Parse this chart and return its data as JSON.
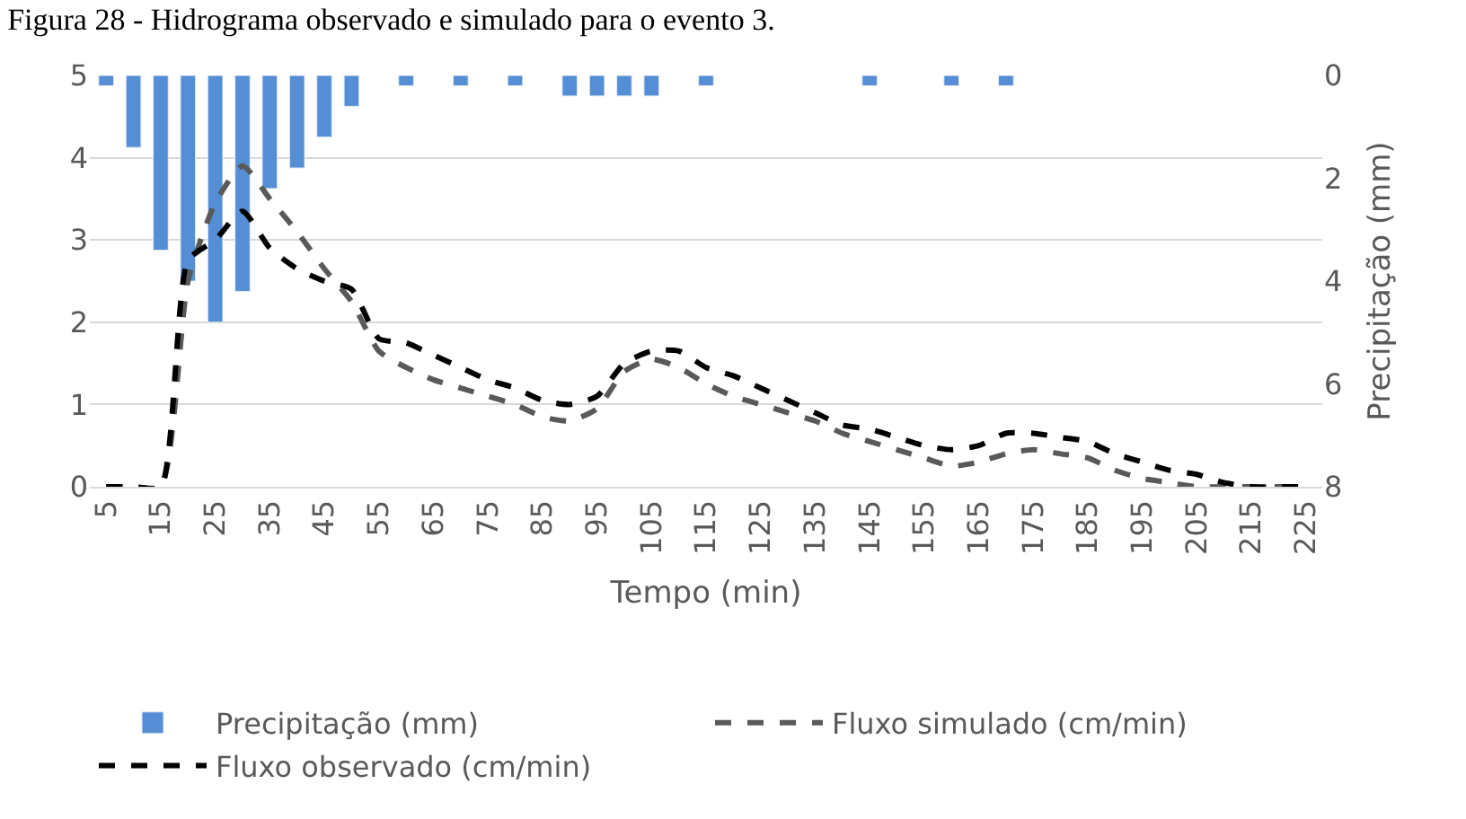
{
  "chart_data": {
    "type": "line",
    "title": "Figura 28 - Hidrograma observado e simulado para o evento 3.",
    "xlabel": "Tempo (min)",
    "y2label": "Precipitação (mm)",
    "categories": [
      "5",
      null,
      "15",
      null,
      "25",
      null,
      "35",
      null,
      "45",
      null,
      "55",
      null,
      "65",
      null,
      "75",
      null,
      "85",
      null,
      "95",
      null,
      "105",
      null,
      "115",
      null,
      "125",
      null,
      "135",
      null,
      "145",
      null,
      "155",
      null,
      "165",
      null,
      "175",
      null,
      "185",
      null,
      "195",
      null,
      "205",
      null,
      "215",
      null,
      "225"
    ],
    "series": [
      {
        "name": "Precipitação (mm)",
        "type": "bar",
        "axis": "y2",
        "color": "#558ed5",
        "values": [
          0.2,
          1.4,
          3.4,
          4.0,
          4.8,
          4.2,
          2.2,
          1.8,
          1.2,
          0.6,
          null,
          0.2,
          null,
          0.2,
          null,
          0.2,
          null,
          0.4,
          0.4,
          0.4,
          0.4,
          null,
          0.2,
          null,
          null,
          null,
          null,
          null,
          0.2,
          null,
          null,
          0.2,
          null,
          0.2,
          null,
          null,
          null,
          null,
          null,
          null,
          null,
          null,
          null,
          null,
          null
        ]
      },
      {
        "name": "Fluxo simulado (cm/min)",
        "line_style": "dashed",
        "color": "#595959",
        "values": [
          0,
          0,
          0,
          2.5,
          3.45,
          3.9,
          3.5,
          3.1,
          2.65,
          2.25,
          1.65,
          1.45,
          1.3,
          1.2,
          1.1,
          1.0,
          0.85,
          0.8,
          0.95,
          1.4,
          1.55,
          1.45,
          1.25,
          1.1,
          1.0,
          0.9,
          0.8,
          0.65,
          0.55,
          0.45,
          0.35,
          0.25,
          0.3,
          0.4,
          0.45,
          0.4,
          0.35,
          0.2,
          0.1,
          0.05,
          0,
          0,
          0,
          0,
          0
        ]
      },
      {
        "name": "Fluxo observado (cm/min)",
        "line_style": "dashed",
        "color": "#000000",
        "values": [
          0,
          0,
          0,
          2.75,
          3.0,
          3.35,
          2.9,
          2.65,
          2.5,
          2.4,
          1.8,
          1.75,
          1.6,
          1.45,
          1.3,
          1.2,
          1.05,
          1.0,
          1.1,
          1.5,
          1.65,
          1.65,
          1.45,
          1.35,
          1.2,
          1.05,
          0.9,
          0.75,
          0.7,
          0.6,
          0.5,
          0.45,
          0.5,
          0.65,
          0.65,
          0.6,
          0.55,
          0.4,
          0.3,
          0.2,
          0.15,
          0.05,
          0,
          0,
          0
        ]
      }
    ],
    "ylim": [
      0,
      5
    ],
    "yticks": [
      0,
      1,
      2,
      3,
      4,
      5
    ],
    "y2lim": [
      8,
      0
    ],
    "y2ticks": [
      0,
      2,
      4,
      6,
      8
    ],
    "grid": "y",
    "legend": "bottom",
    "marker": "none"
  }
}
